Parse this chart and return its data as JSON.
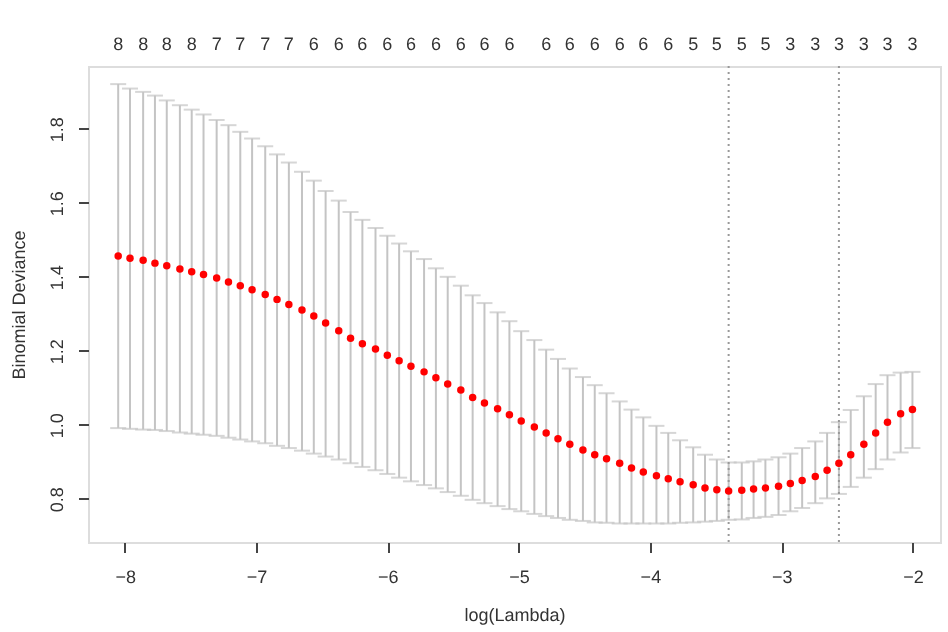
{
  "chart_data": {
    "type": "scatter",
    "xlabel": "log(Lambda)",
    "ylabel": "Binomial Deviance",
    "marker": "circle",
    "color": "#ff0000",
    "x": [
      -8.05,
      -7.96,
      -7.86,
      -7.77,
      -7.68,
      -7.58,
      -7.49,
      -7.4,
      -7.3,
      -7.21,
      -7.12,
      -7.03,
      -6.93,
      -6.84,
      -6.75,
      -6.65,
      -6.56,
      -6.47,
      -6.37,
      -6.28,
      -6.19,
      -6.09,
      -6.0,
      -5.91,
      -5.82,
      -5.72,
      -5.63,
      -5.54,
      -5.44,
      -5.35,
      -5.26,
      -5.16,
      -5.07,
      -4.98,
      -4.88,
      -4.79,
      -4.7,
      -4.61,
      -4.51,
      -4.42,
      -4.33,
      -4.23,
      -4.14,
      -4.05,
      -3.95,
      -3.86,
      -3.77,
      -3.67,
      -3.58,
      -3.49,
      -3.4,
      -3.3,
      -3.21,
      -3.12,
      -3.02,
      -2.93,
      -2.84,
      -2.74,
      -2.65,
      -2.56,
      -2.47,
      -2.37,
      -2.28,
      -2.19,
      -2.09,
      -2.0
    ],
    "values": [
      1.456,
      1.45,
      1.445,
      1.437,
      1.43,
      1.421,
      1.414,
      1.406,
      1.397,
      1.386,
      1.376,
      1.365,
      1.352,
      1.339,
      1.325,
      1.31,
      1.294,
      1.275,
      1.254,
      1.234,
      1.219,
      1.205,
      1.188,
      1.173,
      1.158,
      1.143,
      1.127,
      1.11,
      1.094,
      1.074,
      1.059,
      1.043,
      1.027,
      1.01,
      0.994,
      0.978,
      0.962,
      0.947,
      0.932,
      0.919,
      0.908,
      0.896,
      0.883,
      0.872,
      0.862,
      0.854,
      0.846,
      0.838,
      0.829,
      0.824,
      0.821,
      0.823,
      0.826,
      0.829,
      0.834,
      0.841,
      0.849,
      0.86,
      0.877,
      0.896,
      0.919,
      0.947,
      0.978,
      1.007,
      1.03,
      1.041
    ],
    "errors": [
      [
        0.991,
        1.921
      ],
      [
        0.989,
        1.909
      ],
      [
        0.987,
        1.9
      ],
      [
        0.986,
        1.89
      ],
      [
        0.983,
        1.877
      ],
      [
        0.979,
        1.864
      ],
      [
        0.976,
        1.852
      ],
      [
        0.973,
        1.839
      ],
      [
        0.97,
        1.824
      ],
      [
        0.965,
        1.81
      ],
      [
        0.96,
        1.792
      ],
      [
        0.955,
        1.774
      ],
      [
        0.95,
        1.753
      ],
      [
        0.943,
        1.731
      ],
      [
        0.937,
        1.709
      ],
      [
        0.93,
        1.684
      ],
      [
        0.922,
        1.66
      ],
      [
        0.914,
        1.632
      ],
      [
        0.906,
        1.606
      ],
      [
        0.896,
        1.575
      ],
      [
        0.886,
        1.554
      ],
      [
        0.877,
        1.532
      ],
      [
        0.867,
        1.511
      ],
      [
        0.857,
        1.49
      ],
      [
        0.847,
        1.469
      ],
      [
        0.837,
        1.448
      ],
      [
        0.828,
        1.423
      ],
      [
        0.818,
        1.4
      ],
      [
        0.808,
        1.376
      ],
      [
        0.797,
        1.35
      ],
      [
        0.788,
        1.329
      ],
      [
        0.78,
        1.304
      ],
      [
        0.772,
        1.28
      ],
      [
        0.766,
        1.253
      ],
      [
        0.759,
        1.229
      ],
      [
        0.753,
        1.203
      ],
      [
        0.748,
        1.178
      ],
      [
        0.743,
        1.152
      ],
      [
        0.74,
        1.129
      ],
      [
        0.736,
        1.107
      ],
      [
        0.735,
        1.085
      ],
      [
        0.733,
        1.063
      ],
      [
        0.733,
        1.041
      ],
      [
        0.733,
        1.02
      ],
      [
        0.733,
        0.997
      ],
      [
        0.733,
        0.978
      ],
      [
        0.735,
        0.958
      ],
      [
        0.736,
        0.939
      ],
      [
        0.738,
        0.919
      ],
      [
        0.74,
        0.906
      ],
      [
        0.743,
        0.898
      ],
      [
        0.744,
        0.898
      ],
      [
        0.748,
        0.901
      ],
      [
        0.751,
        0.906
      ],
      [
        0.756,
        0.912
      ],
      [
        0.766,
        0.922
      ],
      [
        0.775,
        0.937
      ],
      [
        0.788,
        0.955
      ],
      [
        0.801,
        0.978
      ],
      [
        0.813,
        1.007
      ],
      [
        0.832,
        1.04
      ],
      [
        0.857,
        1.077
      ],
      [
        0.88,
        1.11
      ],
      [
        0.906,
        1.134
      ],
      [
        0.925,
        1.141
      ],
      [
        0.937,
        1.143
      ]
    ],
    "xlim": [
      -8.28,
      -1.79
    ],
    "xticks": [
      -8,
      -7,
      -6,
      -5,
      -4,
      -3,
      -2
    ],
    "ylim": [
      0.683,
      1.97
    ],
    "yticks": [
      0.8,
      {
        "value": 1.0,
        "label": "1.0"
      },
      1.2,
      1.4,
      1.6,
      1.8
    ],
    "annotations": [
      "8",
      "8",
      "8",
      "8",
      "7",
      "7",
      "7",
      "7",
      "6",
      "6",
      "6",
      "6",
      "6",
      "6",
      "6",
      "6",
      "6",
      "6",
      "6",
      "6",
      "6",
      "6",
      "6",
      "5",
      "5",
      "5",
      "5",
      "3",
      "3",
      "3",
      "3",
      "3",
      "3"
    ],
    "ref_lines": [
      {
        "axis": "x",
        "value": -3.4,
        "line_style": "dotted",
        "color": "#999999"
      },
      {
        "axis": "x",
        "value": -2.56,
        "line_style": "dotted",
        "color": "#999999"
      }
    ]
  }
}
